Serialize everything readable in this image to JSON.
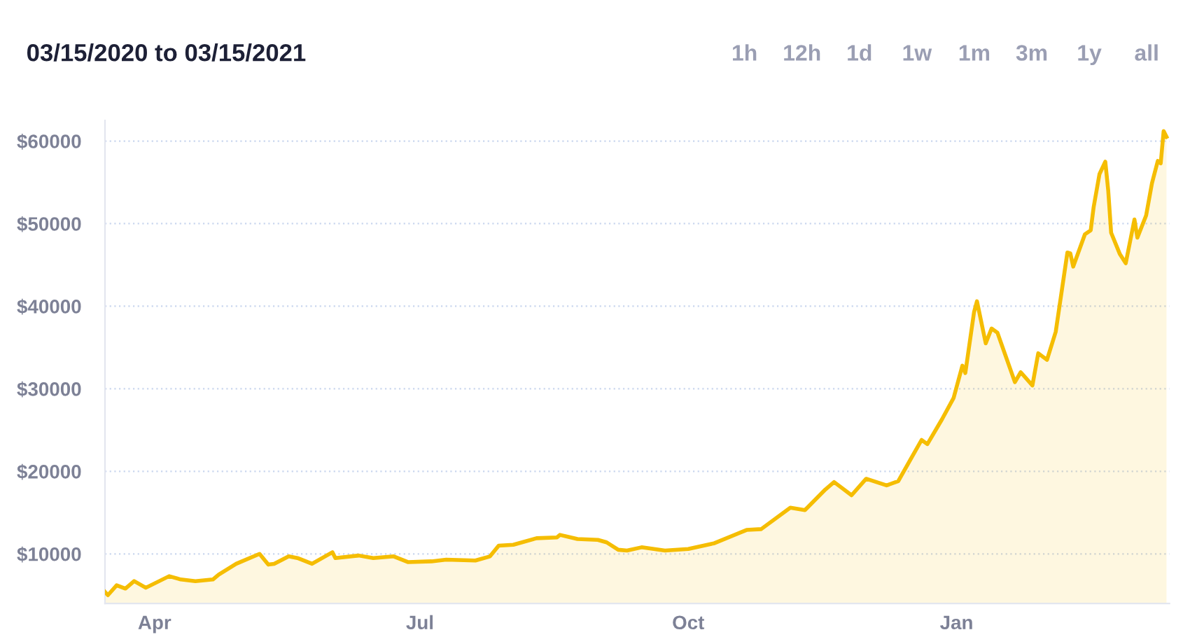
{
  "chart_data": {
    "type": "area",
    "title": "03/15/2020 to 03/15/2021",
    "annotations": [
      "1h",
      "12h",
      "1d",
      "1w",
      "1m",
      "3m",
      "1y",
      "all"
    ],
    "x": [
      "2020-03-15",
      "2020-03-16",
      "2020-03-19",
      "2020-03-22",
      "2020-03-25",
      "2020-03-29",
      "2020-04-06",
      "2020-04-10",
      "2020-04-15",
      "2020-04-21",
      "2020-04-23",
      "2020-04-29",
      "2020-05-07",
      "2020-05-10",
      "2020-05-12",
      "2020-05-17",
      "2020-05-20",
      "2020-05-25",
      "2020-06-01",
      "2020-06-02",
      "2020-06-10",
      "2020-06-15",
      "2020-06-22",
      "2020-06-27",
      "2020-07-05",
      "2020-07-10",
      "2020-07-20",
      "2020-07-25",
      "2020-07-28",
      "2020-08-02",
      "2020-08-10",
      "2020-08-17",
      "2020-08-18",
      "2020-08-24",
      "2020-08-31",
      "2020-09-03",
      "2020-09-07",
      "2020-09-10",
      "2020-09-15",
      "2020-09-23",
      "2020-10-01",
      "2020-10-10",
      "2020-10-21",
      "2020-10-26",
      "2020-11-05",
      "2020-11-10",
      "2020-11-17",
      "2020-11-20",
      "2020-11-26",
      "2020-12-01",
      "2020-12-08",
      "2020-12-12",
      "2020-12-16",
      "2020-12-20",
      "2020-12-22",
      "2020-12-27",
      "2020-12-31",
      "2021-01-03",
      "2021-01-04",
      "2021-01-07",
      "2021-01-08",
      "2021-01-11",
      "2021-01-13",
      "2021-01-15",
      "2021-01-21",
      "2021-01-23",
      "2021-01-27",
      "2021-01-29",
      "2021-02-01",
      "2021-02-04",
      "2021-02-08",
      "2021-02-09",
      "2021-02-10",
      "2021-02-14",
      "2021-02-16",
      "2021-02-17",
      "2021-02-19",
      "2021-02-21",
      "2021-02-22",
      "2021-02-23",
      "2021-02-26",
      "2021-02-28",
      "2021-03-03",
      "2021-03-04",
      "2021-03-07",
      "2021-03-09",
      "2021-03-11",
      "2021-03-12",
      "2021-03-13",
      "2021-03-14"
    ],
    "series": [
      {
        "color": "#f5bd02",
        "values": [
          5400,
          5000,
          6200,
          5800,
          6700,
          5900,
          7300,
          6900,
          6700,
          6900,
          7500,
          8800,
          10000,
          8700,
          8800,
          9700,
          9500,
          8800,
          10200,
          9500,
          9800,
          9500,
          9700,
          9000,
          9100,
          9300,
          9200,
          9700,
          11000,
          11100,
          11900,
          12000,
          12300,
          11800,
          11700,
          11400,
          10500,
          10400,
          10800,
          10400,
          10600,
          11300,
          12900,
          13000,
          15600,
          15300,
          17800,
          18700,
          17100,
          19100,
          18300,
          18800,
          21300,
          23800,
          23300,
          26300,
          28900,
          32800,
          31900,
          39300,
          40600,
          35500,
          37300,
          36800,
          30800,
          32000,
          30400,
          34300,
          33500,
          36900,
          46500,
          46400,
          44800,
          48700,
          49200,
          52000,
          56000,
          57500,
          54000,
          48900,
          46300,
          45200,
          50500,
          48300,
          51000,
          54900,
          57600,
          57300,
          61200,
          60500
        ]
      }
    ],
    "xlim": [
      "2020-03-15",
      "2021-03-15"
    ],
    "xticks": [
      {
        "value": "2020-04-01",
        "label": "Apr"
      },
      {
        "value": "2020-07-01",
        "label": "Jul"
      },
      {
        "value": "2020-10-01",
        "label": "Oct"
      },
      {
        "value": "2021-01-01",
        "label": "Jan"
      }
    ],
    "ylim": [
      4000,
      62500
    ],
    "yticks": [
      {
        "value": 10000,
        "label": "$10000"
      },
      {
        "value": 20000,
        "label": "$20000"
      },
      {
        "value": 30000,
        "label": "$30000"
      },
      {
        "value": 40000,
        "label": "$40000"
      },
      {
        "value": 50000,
        "label": "$50000"
      },
      {
        "value": 60000,
        "label": "$60000"
      }
    ],
    "grid": "y"
  }
}
